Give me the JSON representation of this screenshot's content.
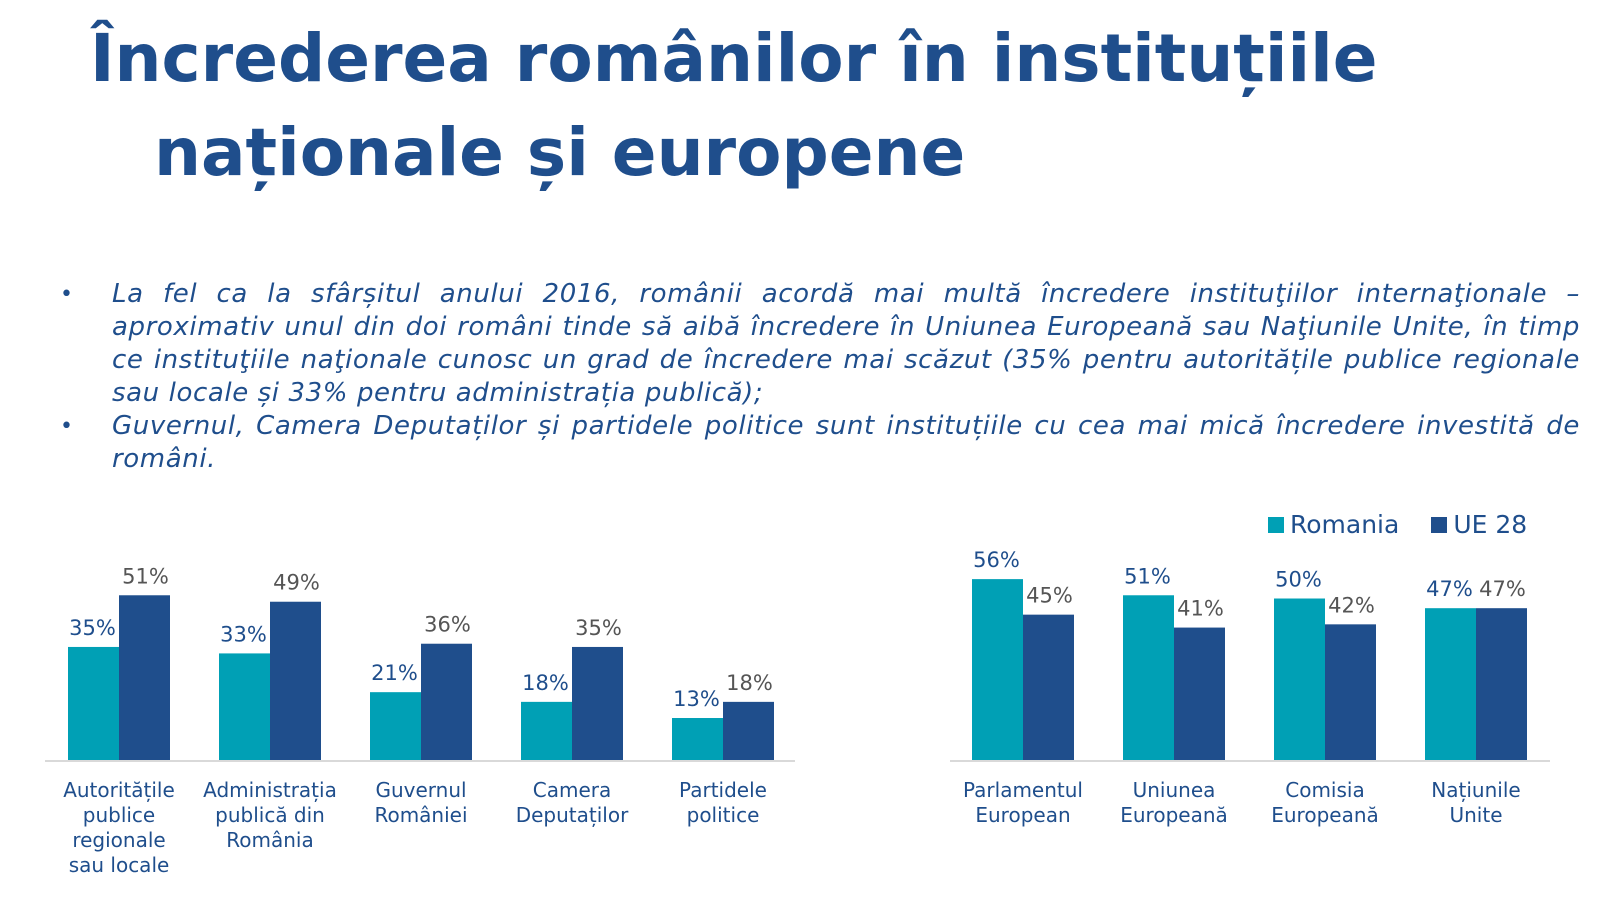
{
  "title": {
    "line1": "Încrederea românilor în instituțiile",
    "line2": "naționale și europene"
  },
  "bullets": [
    "La fel ca la sfârșitul anului 2016, românii acordă mai multă încredere instituţiilor internaţionale – aproximativ unul din doi români tinde să aibă încredere în Uniunea Europeană sau Naţiunile Unite, în timp ce instituţiile naţionale cunosc un grad de încredere mai scăzut (35% pentru autoritățile publice regionale sau locale și 33% pentru administrația publică);",
    "Guvernul, Camera Deputaților și partidele politice sunt instituțiile cu cea mai mică încredere investită de români."
  ],
  "colors": {
    "title": "#1f4e8c",
    "romania": "#00a0b5",
    "ue28": "#1f4e8c",
    "value_label": "#555555",
    "axis_line": "#d9d9d9",
    "category_label": "#1f4e8c"
  },
  "chart_data": {
    "type": "bar",
    "title": "",
    "xlabel": "",
    "ylabel": "",
    "ylim": [
      0,
      60
    ],
    "legend_position": "top-right",
    "legend": [
      "Romania",
      "UE 28"
    ],
    "categories": [
      [
        "Autoritățile",
        "publice",
        "regionale",
        "sau locale"
      ],
      [
        "Administrația",
        "publică din",
        "România"
      ],
      [
        "Guvernul",
        "României"
      ],
      [
        "Camera",
        "Deputaților"
      ],
      [
        "Partidele",
        "politice"
      ],
      [
        "Parlamentul",
        "European"
      ],
      [
        "Uniunea",
        "Europeană"
      ],
      [
        "Comisia",
        "Europeană"
      ],
      [
        "Națiunile",
        "Unite"
      ]
    ],
    "series": [
      {
        "name": "Romania",
        "values": [
          35,
          33,
          21,
          18,
          13,
          56,
          51,
          50,
          47
        ],
        "labels": [
          "35%",
          "33%",
          "21%",
          "18%",
          "13%",
          "56%",
          "51%",
          "50%",
          "47%"
        ]
      },
      {
        "name": "UE 28",
        "values": [
          51,
          49,
          36,
          35,
          18,
          45,
          41,
          42,
          47
        ],
        "labels": [
          "51%",
          "49%",
          "36%",
          "35%",
          "18%",
          "45%",
          "41%",
          "42%",
          "47%"
        ]
      }
    ]
  }
}
